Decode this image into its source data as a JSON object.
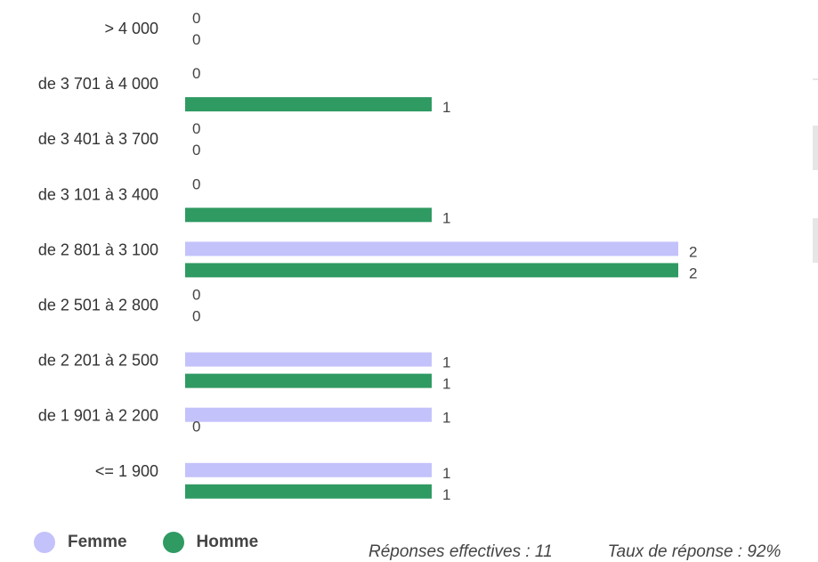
{
  "chart_data": {
    "type": "bar",
    "orientation": "horizontal",
    "categories": [
      "> 4 000",
      "de 3 701 à 4 000",
      "de 3 401 à 3 700",
      "de 3 101 à 3 400",
      "de 2 801 à 3 100",
      "de 2 501 à 2 800",
      "de 2 201 à 2 500",
      "de 1 901 à 2 200",
      "<= 1 900"
    ],
    "series": [
      {
        "name": "Femme",
        "color": "#c4c2fb",
        "values": [
          0,
          0,
          0,
          0,
          2,
          0,
          1,
          1,
          1
        ]
      },
      {
        "name": "Homme",
        "color": "#2f9a62",
        "values": [
          0,
          1,
          0,
          1,
          2,
          0,
          1,
          0,
          1
        ]
      }
    ],
    "xlim": [
      0,
      2
    ],
    "grid": false,
    "legend_position": "bottom-left"
  },
  "legend": {
    "femme": "Femme",
    "homme": "Homme"
  },
  "footer": {
    "responses": "Réponses effectives : 11",
    "rate": "Taux de réponse : 92%"
  }
}
